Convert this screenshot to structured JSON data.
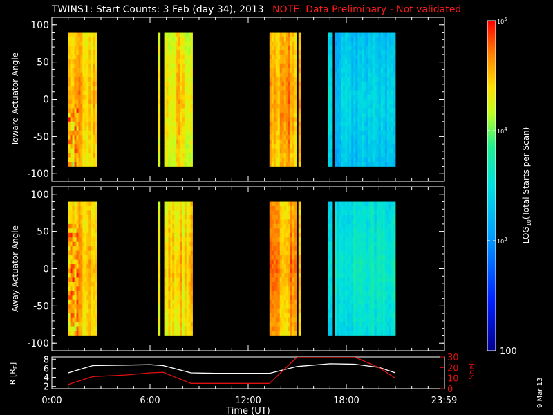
{
  "header": {
    "title": "TWINS1: Start Counts:  3 Feb (day  34), 2013",
    "note": "NOTE: Data Preliminary - Not validated",
    "date_stamp": "9 Mar 13"
  },
  "colors": {
    "background": "#000000",
    "axes": "#ffffff",
    "note": "#ff1a1a",
    "r_line": "#ffffff",
    "lshell_line": "#e01010"
  },
  "chart_data": [
    {
      "type": "heatmap",
      "title": "",
      "ylabel": "Toward Actuator Angle",
      "ylim": [
        -110,
        110
      ],
      "yticks": [
        "100",
        "50",
        "0",
        "-50",
        "-100"
      ],
      "ytick_values": [
        100,
        50,
        0,
        -50,
        -100
      ],
      "xlim": [
        0,
        24
      ],
      "angle_range": [
        -90,
        90
      ],
      "intervals_hours": [
        [
          1.0,
          2.75
        ],
        [
          6.5,
          8.6
        ],
        [
          13.3,
          15.2
        ],
        [
          16.9,
          21.0
        ]
      ],
      "typical_log10_counts": [
        4.55,
        4.4,
        4.6,
        3.35
      ]
    },
    {
      "type": "heatmap",
      "title": "",
      "ylabel": "Away Actuator Angle",
      "ylim": [
        -110,
        110
      ],
      "yticks": [
        "100",
        "50",
        "0",
        "-50",
        "-100"
      ],
      "ytick_values": [
        100,
        50,
        0,
        -50,
        -100
      ],
      "xlim": [
        0,
        24
      ],
      "angle_range": [
        -90,
        90
      ],
      "intervals_hours": [
        [
          1.0,
          2.75
        ],
        [
          6.5,
          8.6
        ],
        [
          13.3,
          15.2
        ],
        [
          16.9,
          21.0
        ]
      ],
      "typical_log10_counts": [
        4.5,
        4.45,
        4.6,
        3.6
      ]
    },
    {
      "type": "line",
      "xlabel": "Time (UT)",
      "xlim": [
        0,
        24
      ],
      "xticks": [
        "0:00",
        "6:00",
        "12:00",
        "18:00",
        "23:59"
      ],
      "xtick_values": [
        0,
        6,
        12,
        18,
        23.98
      ],
      "ylabel": "R [R",
      "ylabel_sub": "E",
      "ylabel_close": "]",
      "ylim": [
        1.5,
        8.5
      ],
      "yticks": [
        "8",
        "6",
        "4",
        "2"
      ],
      "ytick_values": [
        8,
        6,
        4,
        2
      ],
      "y2label": "L Shell",
      "y2lim": [
        0,
        30
      ],
      "y2ticks": [
        "30",
        "20",
        "10",
        "0"
      ],
      "y2tick_values": [
        30,
        20,
        10,
        0
      ],
      "series": [
        {
          "axis": "left",
          "x": [
            1.0,
            2.5,
            4.5,
            6.0,
            6.8,
            8.5,
            10.0,
            12.0,
            13.3,
            15.0,
            17.0,
            18.5,
            20.0,
            21.0
          ],
          "y": [
            5.0,
            6.6,
            6.7,
            6.8,
            6.6,
            5.0,
            4.9,
            4.9,
            4.9,
            6.4,
            7.0,
            6.9,
            6.2,
            5.0
          ]
        },
        {
          "axis": "right",
          "x": [
            1.0,
            2.5,
            4.5,
            6.0,
            6.8,
            8.5,
            10.0,
            12.0,
            13.3,
            15.0,
            17.0,
            18.5,
            20.0,
            21.0
          ],
          "y": [
            4.0,
            11.5,
            13.0,
            15.0,
            15.5,
            5.0,
            5.0,
            5.0,
            5.0,
            30.0,
            30.0,
            30.0,
            20.0,
            10.0
          ]
        }
      ]
    },
    {
      "type": "heatmap",
      "title": "",
      "ylabel": "LOG",
      "ylabel_sub": "10",
      "ylabel_rest": "(Total Starts per Scan)",
      "role": "colorbar",
      "range_log10": [
        2,
        5
      ],
      "ticks": [
        {
          "base": "10",
          "exp": "5",
          "value": 5
        },
        {
          "base": "10",
          "exp": "4",
          "value": 4
        },
        {
          "base": "10",
          "exp": "3",
          "value": 3
        },
        {
          "base": "100",
          "exp": "",
          "value": 2
        }
      ]
    }
  ]
}
